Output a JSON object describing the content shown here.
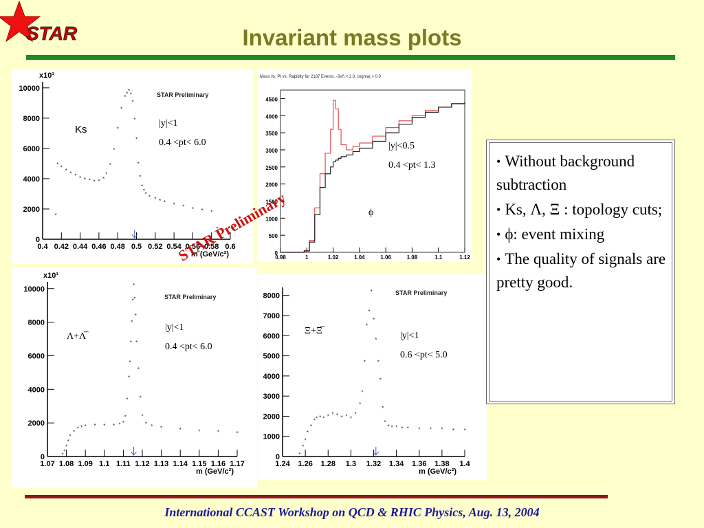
{
  "header": {
    "logo_text": "STAR",
    "title": "Invariant mass plots"
  },
  "footer": {
    "text": "International CCAST Workshop on QCD & RHIC Physics, Aug. 13, 2004"
  },
  "overlay": {
    "preliminary": "STAR Preliminary"
  },
  "bullets": [
    "Without background subtraction",
    "Ks, Λ, Ξ : topology cuts;",
    "ϕ: event mixing",
    "The quality of signals are pretty good."
  ],
  "colors": {
    "background": "#ffffcc",
    "title": "#7a7a22",
    "green_rule": "#1f8a1f",
    "dark_red_rule": "#8b1a1a",
    "footer_text": "#1a1a99",
    "overlay_red": "#cc1111",
    "phi_same_event": "#e05050",
    "phi_mixed": "#222222"
  },
  "chart_data": [
    {
      "id": "ks",
      "type": "scatter",
      "label": "Ks",
      "exp_label": "x10¹",
      "watermark": "STAR Preliminary",
      "cuts": [
        "|y|<1",
        "0.4 <pt< 6.0"
      ],
      "xlabel": "m  (GeV/c²)",
      "xlim": [
        0.4,
        0.6
      ],
      "ylim": [
        0,
        10400
      ],
      "xticks": [
        0.4,
        0.42,
        0.44,
        0.46,
        0.48,
        0.5,
        0.52,
        0.54,
        0.56,
        0.58,
        0.6
      ],
      "xtick_labels": [
        "0.4",
        "0.42",
        "0.44",
        "0.46",
        "0.48",
        "0.5",
        "0.52",
        "0.54",
        "0.56",
        "0.58",
        "0.6"
      ],
      "yticks": [
        0,
        2000,
        4000,
        6000,
        8000,
        10000
      ],
      "marker_x": 0.498,
      "x": [
        0.414,
        0.416,
        0.42,
        0.425,
        0.43,
        0.435,
        0.44,
        0.445,
        0.45,
        0.455,
        0.46,
        0.465,
        0.468,
        0.472,
        0.476,
        0.48,
        0.484,
        0.488,
        0.49,
        0.492,
        0.494,
        0.496,
        0.498,
        0.5,
        0.502,
        0.504,
        0.506,
        0.508,
        0.51,
        0.514,
        0.52,
        0.525,
        0.53,
        0.54,
        0.55,
        0.56,
        0.57,
        0.58,
        0.586
      ],
      "y": [
        1600,
        4950,
        4750,
        4550,
        4350,
        4200,
        4050,
        3950,
        3880,
        3820,
        3830,
        4000,
        4300,
        4900,
        5900,
        7300,
        8600,
        9400,
        9600,
        9800,
        9550,
        9050,
        7900,
        6600,
        5000,
        4100,
        3500,
        3200,
        3000,
        2800,
        2650,
        2550,
        2450,
        2300,
        2150,
        2000,
        1900,
        1800,
        700
      ]
    },
    {
      "id": "phi",
      "type": "line",
      "label": "ϕ",
      "header_text": "Mass vs. Pt vs. Rapidity for 2187 Events. -3≤Λ < 2.0, |sigma| > 0.0",
      "cuts": [
        "|y|<0.5",
        "0.4 <pt< 1.3"
      ],
      "xlim": [
        0.98,
        1.12
      ],
      "ylim": [
        0,
        4750
      ],
      "xticks": [
        0.98,
        1.0,
        1.02,
        1.04,
        1.06,
        1.08,
        1.1,
        1.12
      ],
      "xtick_labels": [
        "0.98",
        "1",
        "1.02",
        "1.04",
        "1.06",
        "1.08",
        "1.1",
        "1.12"
      ],
      "yticks": [
        0,
        500,
        1000,
        1500,
        2000,
        2500,
        3000,
        3500,
        4000,
        4500
      ],
      "x": [
        0.98,
        0.99,
        0.998,
        1.002,
        1.006,
        1.01,
        1.014,
        1.018,
        1.02,
        1.022,
        1.024,
        1.026,
        1.03,
        1.035,
        1.04,
        1.05,
        1.06,
        1.07,
        1.08,
        1.09,
        1.1,
        1.11,
        1.12
      ],
      "series": [
        {
          "name": "",
          "color": "#e05050",
          "values": [
            0,
            0,
            50,
            350,
            1300,
            2300,
            2900,
            3600,
            4450,
            4200,
            3600,
            3150,
            3000,
            3100,
            3200,
            3400,
            3650,
            3850,
            4000,
            4150,
            4250,
            4350,
            4400
          ]
        },
        {
          "name": "",
          "color": "#222222",
          "values": [
            0,
            0,
            40,
            300,
            1100,
            1900,
            2300,
            2500,
            2650,
            2700,
            2750,
            2800,
            2850,
            2950,
            3050,
            3250,
            3500,
            3750,
            3950,
            4100,
            4250,
            4350,
            4400
          ]
        }
      ]
    },
    {
      "id": "lambda",
      "type": "scatter",
      "label": "Λ+Λ̅",
      "exp_label": "x10¹",
      "watermark": "STAR Preliminary",
      "cuts": [
        "|y|<1",
        "0.4 <pt< 6.0"
      ],
      "xlabel": "m  (GeV/c²)",
      "xlim": [
        1.07,
        1.17
      ],
      "ylim": [
        0,
        10400
      ],
      "xticks": [
        1.07,
        1.08,
        1.09,
        1.1,
        1.11,
        1.12,
        1.13,
        1.14,
        1.15,
        1.16,
        1.17
      ],
      "xtick_labels": [
        "1.07",
        "1.08",
        "1.09",
        "1.1",
        "1.11",
        "1.12",
        "1.13",
        "1.14",
        "1.15",
        "1.16",
        "1.17"
      ],
      "yticks": [
        0,
        2000,
        4000,
        6000,
        8000,
        10000
      ],
      "marker_x": 1.1155,
      "x": [
        1.078,
        1.079,
        1.08,
        1.081,
        1.082,
        1.084,
        1.086,
        1.088,
        1.09,
        1.095,
        1.1,
        1.105,
        1.108,
        1.11,
        1.111,
        1.112,
        1.113,
        1.1135,
        1.114,
        1.1145,
        1.115,
        1.1155,
        1.116,
        1.1165,
        1.117,
        1.118,
        1.119,
        1.12,
        1.122,
        1.125,
        1.13,
        1.14,
        1.15,
        1.16,
        1.17
      ],
      "y": [
        100,
        300,
        600,
        900,
        1200,
        1450,
        1650,
        1750,
        1800,
        1850,
        1850,
        1850,
        1900,
        2000,
        2350,
        3400,
        4700,
        5600,
        6800,
        8000,
        9300,
        10200,
        9400,
        8400,
        6800,
        5200,
        3500,
        2400,
        1950,
        1800,
        1700,
        1600,
        1500,
        1450,
        1400
      ]
    },
    {
      "id": "xi",
      "type": "scatter",
      "label": "Ξ+Ξ̅",
      "watermark": "STAR Preliminary",
      "cuts": [
        "|y|<1",
        "0.6 <pt< 5.0"
      ],
      "xlabel": "m  (GeV/c²)",
      "xlim": [
        1.24,
        1.4
      ],
      "ylim": [
        0,
        8400
      ],
      "xticks": [
        1.24,
        1.26,
        1.28,
        1.3,
        1.32,
        1.34,
        1.36,
        1.38,
        1.4
      ],
      "xtick_labels": [
        "1.24",
        "1.26",
        "1.28",
        "1.3",
        "1.32",
        "1.34",
        "1.36",
        "1.38",
        "1.4"
      ],
      "yticks": [
        0,
        1000,
        2000,
        3000,
        4000,
        5000,
        6000,
        7000,
        8000
      ],
      "marker_x": 1.322,
      "x": [
        1.255,
        1.258,
        1.26,
        1.262,
        1.265,
        1.268,
        1.27,
        1.273,
        1.276,
        1.28,
        1.284,
        1.288,
        1.292,
        1.296,
        1.3,
        1.304,
        1.308,
        1.31,
        1.312,
        1.314,
        1.316,
        1.318,
        1.32,
        1.322,
        1.324,
        1.326,
        1.328,
        1.33,
        1.333,
        1.336,
        1.34,
        1.345,
        1.35,
        1.36,
        1.37,
        1.38,
        1.39,
        1.4
      ],
      "y": [
        100,
        500,
        800,
        1200,
        1500,
        1800,
        1900,
        1950,
        1900,
        2000,
        2100,
        2050,
        1950,
        2000,
        1900,
        2100,
        2600,
        3200,
        4700,
        6500,
        7200,
        8200,
        6800,
        5800,
        4700,
        3800,
        2400,
        1700,
        1500,
        1450,
        1450,
        1400,
        1400,
        1350,
        1350,
        1350,
        1300,
        1300
      ]
    }
  ]
}
